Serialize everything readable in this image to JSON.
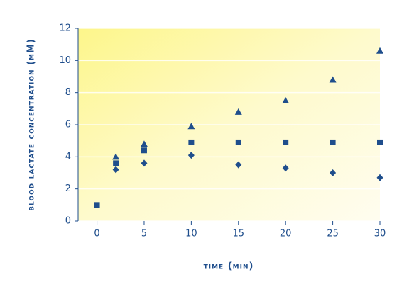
{
  "chart_data": {
    "type": "scatter",
    "x_label": "time (min)",
    "y_label": "blood lactate concentration (mM)",
    "xlim": [
      -2,
      30
    ],
    "xticks": [
      0,
      5,
      10,
      15,
      20,
      25,
      30
    ],
    "ylim": [
      0,
      12
    ],
    "yticks": [
      0,
      2,
      4,
      6,
      8,
      10,
      12
    ],
    "grid": true,
    "series": [
      {
        "marker": "triangle",
        "color": "#1f4e8c",
        "x": [
          2,
          5,
          10,
          15,
          20,
          25,
          30
        ],
        "values": [
          4.0,
          4.8,
          5.9,
          6.8,
          7.5,
          8.8,
          10.6
        ]
      },
      {
        "marker": "square",
        "color": "#1f4e8c",
        "x": [
          0,
          2,
          5,
          10,
          15,
          20,
          25,
          30
        ],
        "values": [
          1.0,
          3.6,
          4.4,
          4.9,
          4.9,
          4.9,
          4.9,
          4.9
        ]
      },
      {
        "marker": "diamond",
        "color": "#1f4e8c",
        "x": [
          2,
          5,
          10,
          15,
          20,
          25,
          30
        ],
        "values": [
          3.2,
          3.6,
          4.1,
          3.5,
          3.3,
          3.0,
          2.7
        ]
      }
    ]
  }
}
